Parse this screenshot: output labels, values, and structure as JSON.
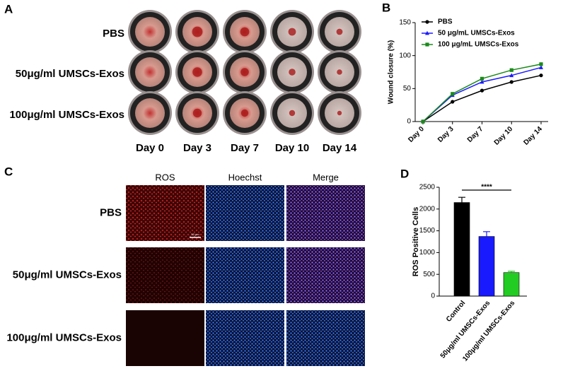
{
  "panel_labels": [
    "A",
    "B",
    "C",
    "D"
  ],
  "panel_a": {
    "rows": [
      "PBS",
      "50μg/ml UMSCs-Exos",
      "100μg/ml UMSCs-Exos"
    ],
    "columns": [
      "Day 0",
      "Day 3",
      "Day 7",
      "Day 10",
      "Day 14"
    ]
  },
  "panel_c": {
    "columns": [
      "ROS",
      "Hoechst",
      "Merge"
    ],
    "rows": [
      "PBS",
      "50μg/ml UMSCs-Exos",
      "100μg/ml UMSCs-Exos"
    ],
    "scale_bar": "50 μm"
  },
  "chart_data": [
    {
      "type": "line",
      "y_label": "Wound closure (%)",
      "categories": [
        "Day 0",
        "Day 3",
        "Day 7",
        "Day 10",
        "Day 14"
      ],
      "ylim": [
        0,
        150
      ],
      "yticks": [
        0,
        50,
        100,
        150
      ],
      "legend": "top-left",
      "series": [
        {
          "name": "PBS",
          "color": "#000000",
          "values": [
            0,
            30,
            47,
            60,
            70
          ]
        },
        {
          "name": "50 μg/mL UMSCs-Exos",
          "color": "#1a1aff",
          "values": [
            0,
            40,
            60,
            70,
            82
          ]
        },
        {
          "name": "100 μg/mL UMSCs-Exos",
          "color": "#1a8a1a",
          "values": [
            0,
            42,
            65,
            78,
            87
          ]
        }
      ]
    },
    {
      "type": "bar",
      "y_label": "ROS Positive Cells",
      "categories": [
        "Control",
        "50μg/ml UMSCs-Exos",
        "100μg/ml UMSCs-Exos"
      ],
      "values": [
        2150,
        1370,
        540
      ],
      "errors": [
        120,
        110,
        30
      ],
      "colors": [
        "#000000",
        "#1a1aff",
        "#22cc22"
      ],
      "ylim": [
        0,
        2500
      ],
      "yticks": [
        0,
        500,
        1000,
        1500,
        2000,
        2500
      ],
      "annotation": "****"
    }
  ]
}
